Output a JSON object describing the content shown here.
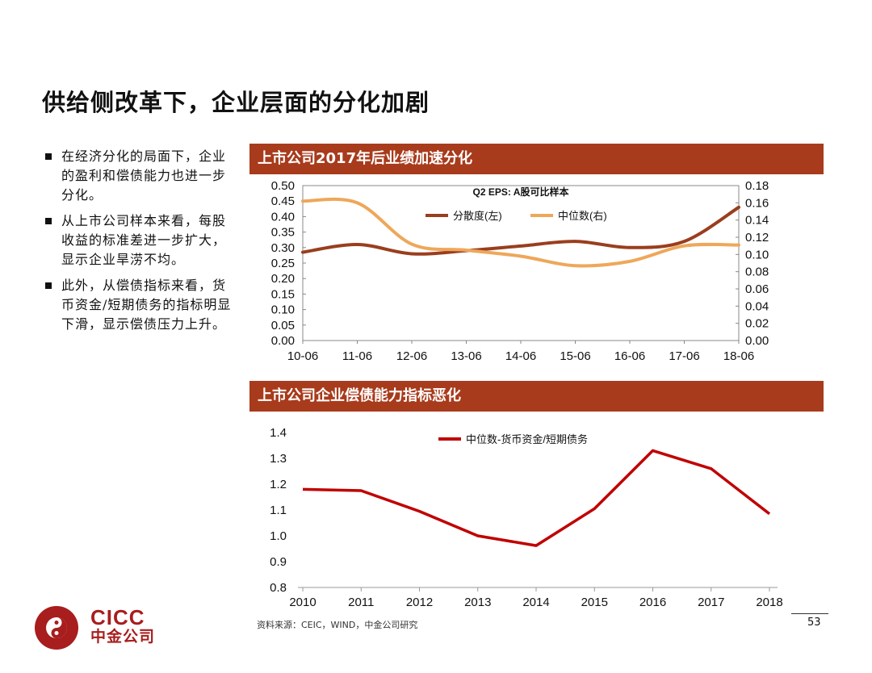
{
  "page": {
    "title": "供给侧改革下，企业层面的分化加剧",
    "bullets": [
      "在经济分化的局面下，企业的盈利和偿债能力也进一步分化。",
      "从上市公司样本来看，每股收益的标准差进一步扩大，显示企业旱涝不均。",
      "此外，从偿债指标来看，货币资金/短期债务的指标明显下滑，显示偿债压力上升。"
    ],
    "source": "资料来源：CEIC，WIND，中金公司研究",
    "page_number": "53",
    "logo": {
      "en": "CICC",
      "cn": "中金公司"
    }
  },
  "chart_data": [
    {
      "type": "line",
      "header": "上市公司2017年后业绩加速分化",
      "title": "Q2 EPS: A股可比样本",
      "categories": [
        "10-06",
        "11-06",
        "12-06",
        "13-06",
        "14-06",
        "15-06",
        "16-06",
        "17-06",
        "18-06"
      ],
      "ylim_left": [
        0,
        0.5
      ],
      "yticks_left": [
        "0.50",
        "0.45",
        "0.40",
        "0.35",
        "0.30",
        "0.25",
        "0.20",
        "0.15",
        "0.10",
        "0.05",
        "0.00"
      ],
      "ylim_right": [
        0,
        0.18
      ],
      "yticks_right": [
        "0.18",
        "0.16",
        "0.14",
        "0.12",
        "0.10",
        "0.08",
        "0.06",
        "0.04",
        "0.02",
        "0.00"
      ],
      "legend_position": "top-center",
      "series": [
        {
          "name": "分散度(左)",
          "axis": "left",
          "color": "#9a3e1e",
          "values": [
            0.285,
            0.31,
            0.28,
            0.29,
            0.305,
            0.32,
            0.3,
            0.32,
            0.43
          ]
        },
        {
          "name": "中位数(右)",
          "axis": "right",
          "color": "#eea75a",
          "values": [
            0.162,
            0.16,
            0.112,
            0.105,
            0.098,
            0.087,
            0.092,
            0.11,
            0.111
          ]
        }
      ]
    },
    {
      "type": "line",
      "header": "上市公司企业偿债能力指标恶化",
      "categories": [
        "2010",
        "2011",
        "2012",
        "2013",
        "2014",
        "2015",
        "2016",
        "2017",
        "2018"
      ],
      "ylim": [
        0.8,
        1.4
      ],
      "yticks": [
        "1.4",
        "1.3",
        "1.2",
        "1.1",
        "1.0",
        "0.9",
        "0.8"
      ],
      "legend_position": "top-center",
      "series": [
        {
          "name": "中位数-货币资金/短期债务",
          "color": "#c00000",
          "values": [
            1.18,
            1.175,
            1.095,
            1.0,
            0.962,
            1.105,
            1.33,
            1.26,
            1.085
          ]
        }
      ]
    }
  ],
  "colors": {
    "header_bar": "#a83b1c",
    "logo_red": "#a81d1d"
  }
}
